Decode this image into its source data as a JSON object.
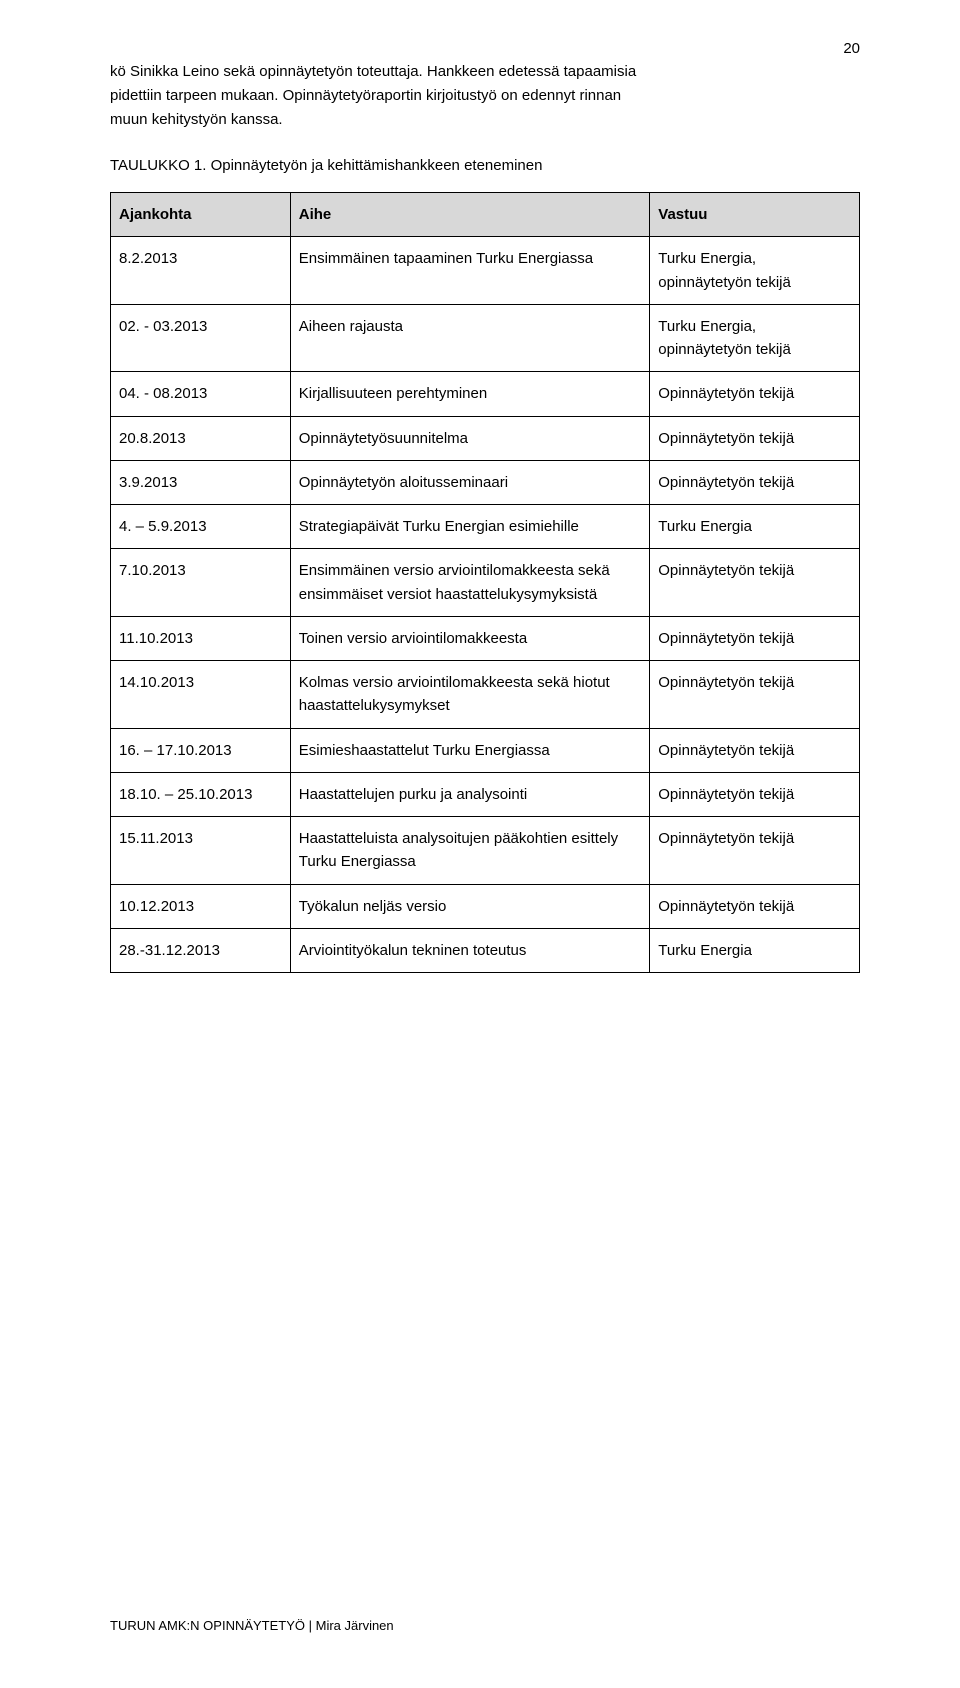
{
  "page_number": "20",
  "intro_line1": "kö Sinikka Leino sekä opinnäytetyön toteuttaja. Hankkeen edetessä tapaamisia",
  "intro_line2": "pidettiin tarpeen mukaan. Opinnäytetyöraportin kirjoitustyö on edennyt rinnan",
  "intro_line3": "muun kehitystyön kanssa.",
  "caption": "TAULUKKO 1. Opinnäytetyön ja kehittämishankkeen eteneminen",
  "headers": {
    "c1": "Ajankohta",
    "c2": "Aihe",
    "c3": "Vastuu"
  },
  "rows": [
    {
      "c1": "8.2.2013",
      "c2": "Ensimmäinen tapaaminen Turku Energiassa",
      "c3": "Turku Energia, opinnäytetyön tekijä"
    },
    {
      "c1": "02. - 03.2013",
      "c2": "Aiheen rajausta",
      "c3": "Turku Energia, opinnäytetyön tekijä"
    },
    {
      "c1": "04. - 08.2013",
      "c2": "Kirjallisuuteen perehtyminen",
      "c3": "Opinnäytetyön tekijä"
    },
    {
      "c1": "20.8.2013",
      "c2": "Opinnäytetyösuunnitelma",
      "c3": "Opinnäytetyön tekijä"
    },
    {
      "c1": "3.9.2013",
      "c2": "Opinnäytetyön aloitusseminaari",
      "c3": "Opinnäytetyön tekijä"
    },
    {
      "c1": "4. – 5.9.2013",
      "c2": "Strategiapäivät Turku Energian esimiehille",
      "c3": "Turku Energia"
    },
    {
      "c1": "7.10.2013",
      "c2": "Ensimmäinen versio arviointilomakkeesta sekä ensimmäiset versiot haastattelukysymyksistä",
      "c3": "Opinnäytetyön tekijä"
    },
    {
      "c1": "11.10.2013",
      "c2": "Toinen versio arviointilomakkeesta",
      "c3": "Opinnäytetyön tekijä"
    },
    {
      "c1": "14.10.2013",
      "c2": "Kolmas versio arviointilomakkeesta sekä hiotut haastattelukysymykset",
      "c3": "Opinnäytetyön tekijä"
    },
    {
      "c1": "16. – 17.10.2013",
      "c2": "Esimieshaastattelut Turku Energiassa",
      "c3": "Opinnäytetyön tekijä"
    },
    {
      "c1": "18.10. – 25.10.2013",
      "c2": "Haastattelujen purku ja analysointi",
      "c3": "Opinnäytetyön tekijä"
    },
    {
      "c1": "15.11.2013",
      "c2": "Haastatteluista analysoitujen pääkohtien esittely Turku Energiassa",
      "c3": "Opinnäytetyön tekijä"
    },
    {
      "c1": "10.12.2013",
      "c2": "Työkalun neljäs versio",
      "c3": "Opinnäytetyön tekijä"
    },
    {
      "c1": "28.-31.12.2013",
      "c2": "Arviointityökalun tekninen toteutus",
      "c3": "Turku Energia"
    }
  ],
  "footer": "TURUN AMK:N OPINNÄYTETYÖ | Mira Järvinen"
}
